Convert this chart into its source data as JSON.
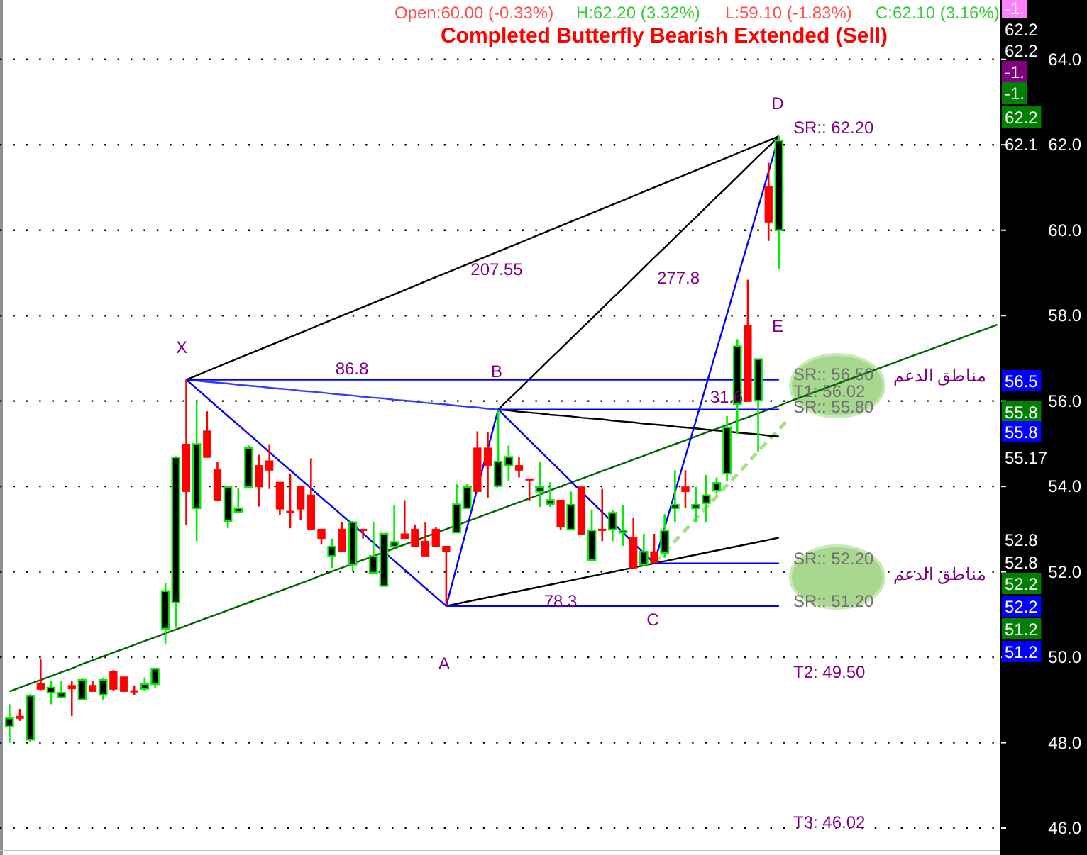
{
  "chart_data": {
    "type": "candlestick",
    "title": "Completed Butterfly Bearish Extended (Sell)",
    "categories": [
      null,
      null,
      null,
      null,
      null,
      null,
      null,
      null,
      null,
      null,
      null,
      null,
      null,
      null,
      null,
      null,
      null,
      null,
      null,
      null,
      null,
      null,
      null,
      null,
      null,
      null,
      null,
      null,
      null,
      null,
      null,
      null,
      null,
      null,
      null,
      null,
      null,
      null,
      null,
      null,
      null,
      null,
      null,
      null,
      null,
      null,
      null,
      null,
      null,
      null,
      null,
      null,
      null,
      null,
      null,
      null,
      null,
      null,
      null,
      null,
      null,
      null,
      null,
      null,
      null,
      null,
      null,
      null,
      null,
      null,
      null,
      null,
      null,
      null,
      null,
      null,
      null,
      null,
      null,
      null,
      null,
      null,
      null,
      null,
      null,
      null,
      null,
      null,
      null,
      null,
      null,
      null,
      null,
      null,
      null,
      null
    ],
    "ylim": [
      45.47,
      65.39
    ],
    "yticks": [
      {
        "value": 46,
        "label": "46.0"
      },
      {
        "value": 48,
        "label": "48.0"
      },
      {
        "value": 50,
        "label": "50.0"
      },
      {
        "value": 52,
        "label": "52.0"
      },
      {
        "value": 54,
        "label": "54.0"
      },
      {
        "value": 56,
        "label": "56.0"
      },
      {
        "value": 58,
        "label": "58.0"
      },
      {
        "value": 60,
        "label": "60.0"
      },
      {
        "value": 62,
        "label": "62.0"
      },
      {
        "value": 64,
        "label": "64.0"
      }
    ],
    "grid": "y",
    "tick_labels": "y",
    "series": [
      {
        "type": "line",
        "color": "#006400",
        "values": [
          49.2,
          49.29,
          49.38,
          49.47,
          49.56,
          49.65,
          49.74,
          49.84,
          49.93,
          50.02,
          50.11,
          50.2,
          50.29,
          50.38,
          50.47,
          50.56,
          50.65,
          50.74,
          50.83,
          50.92,
          51.01,
          51.1,
          51.19,
          51.28,
          51.37,
          51.46,
          51.55,
          51.64,
          51.73,
          51.82,
          51.92,
          52.01,
          52.1,
          52.19,
          52.28,
          52.37,
          52.46,
          52.55,
          52.64,
          52.73,
          52.82,
          52.91,
          53.0,
          53.09,
          53.18,
          53.27,
          53.36,
          53.45,
          53.54,
          53.63,
          53.72,
          53.81,
          53.91,
          54.0,
          54.09,
          54.18,
          54.27,
          54.36,
          54.45,
          54.54,
          54.63,
          54.72,
          54.81,
          54.9,
          54.99,
          55.08,
          55.17,
          55.26,
          55.35,
          55.44,
          55.53,
          55.62,
          55.71,
          55.8,
          55.89,
          55.99,
          56.08,
          56.17,
          56.26,
          56.35,
          56.44,
          56.53,
          56.62,
          56.71,
          56.8,
          56.89,
          56.98,
          57.07,
          57.16,
          57.25,
          57.34,
          57.43,
          57.52,
          57.61,
          57.7,
          57.79
        ]
      },
      {
        "type": "line",
        "color": "#a8e088",
        "line_style": "dashed",
        "values": [
          null,
          null,
          null,
          null,
          null,
          null,
          null,
          null,
          null,
          null,
          null,
          null,
          null,
          null,
          null,
          null,
          null,
          null,
          null,
          null,
          null,
          null,
          null,
          null,
          null,
          null,
          null,
          null,
          null,
          null,
          null,
          null,
          null,
          null,
          null,
          null,
          null,
          null,
          null,
          null,
          null,
          null,
          null,
          null,
          null,
          null,
          null,
          null,
          null,
          null,
          null,
          null,
          null,
          null,
          null,
          null,
          null,
          null,
          null,
          null,
          null,
          null,
          52.2,
          52.46,
          52.72,
          52.98,
          53.25,
          53.51,
          53.77,
          54.03,
          54.29,
          54.55,
          54.82,
          55.08,
          55.34,
          55.6,
          null,
          null,
          null,
          null,
          null,
          null,
          null,
          null,
          null,
          null,
          null,
          null,
          null,
          null,
          null,
          null,
          null,
          null,
          null,
          null
        ]
      },
      {
        "type": "line",
        "color": "#000000",
        "values": [
          null,
          null,
          null,
          null,
          null,
          null,
          null,
          null,
          null,
          null,
          null,
          null,
          null,
          null,
          null,
          null,
          null,
          56.5,
          56.6,
          56.7,
          56.8,
          56.9,
          57.0,
          57.1,
          57.2,
          57.3,
          57.4,
          57.5,
          57.6,
          57.7,
          57.8,
          57.9,
          58.0,
          58.1,
          58.2,
          58.3,
          58.4,
          58.5,
          58.6,
          58.7,
          58.8,
          58.9,
          59.0,
          59.1,
          59.2,
          59.3,
          59.4,
          59.5,
          59.6,
          59.7,
          59.8,
          59.9,
          60.0,
          60.1,
          60.2,
          60.3,
          60.4,
          60.5,
          60.6,
          60.7,
          60.8,
          60.9,
          61.0,
          61.1,
          61.2,
          61.3,
          61.4,
          61.5,
          61.6,
          61.7,
          61.8,
          61.9,
          62.0,
          62.1,
          62.2,
          null,
          null,
          null,
          null,
          null,
          null,
          null,
          null,
          null,
          null,
          null,
          null,
          null,
          null,
          null,
          null,
          null,
          null,
          null,
          null,
          null
        ]
      },
      {
        "type": "line",
        "color": "#000000",
        "values": [
          null,
          null,
          null,
          null,
          null,
          null,
          null,
          null,
          null,
          null,
          null,
          null,
          null,
          null,
          null,
          null,
          null,
          null,
          null,
          null,
          null,
          null,
          null,
          null,
          null,
          null,
          null,
          null,
          null,
          null,
          null,
          null,
          null,
          null,
          null,
          null,
          null,
          null,
          null,
          null,
          null,
          null,
          null,
          null,
          null,
          null,
          null,
          55.8,
          56.04,
          56.27,
          56.51,
          56.75,
          56.99,
          57.22,
          57.46,
          57.7,
          57.93,
          58.17,
          58.41,
          58.64,
          58.88,
          59.12,
          59.36,
          59.59,
          59.83,
          60.07,
          60.3,
          60.54,
          60.78,
          61.01,
          61.25,
          61.49,
          61.73,
          61.96,
          62.2,
          null,
          null,
          null,
          null,
          null,
          null,
          null,
          null,
          null,
          null,
          null,
          null,
          null,
          null,
          null,
          null,
          null,
          null,
          null,
          null,
          null
        ]
      },
      {
        "type": "line",
        "color": "#000000",
        "values": [
          null,
          null,
          null,
          null,
          null,
          null,
          null,
          null,
          null,
          null,
          null,
          null,
          null,
          null,
          null,
          null,
          null,
          null,
          null,
          null,
          null,
          null,
          null,
          null,
          null,
          null,
          null,
          null,
          null,
          null,
          null,
          null,
          null,
          null,
          null,
          null,
          null,
          null,
          null,
          null,
          null,
          null,
          null,
          null,
          null,
          null,
          null,
          55.8,
          55.78,
          55.75,
          55.73,
          55.71,
          55.68,
          55.66,
          55.64,
          55.61,
          55.59,
          55.57,
          55.54,
          55.52,
          55.5,
          55.47,
          55.45,
          55.43,
          55.4,
          55.38,
          55.36,
          55.33,
          55.31,
          55.29,
          55.26,
          55.24,
          55.22,
          55.19,
          55.17,
          null,
          null,
          null,
          null,
          null,
          null,
          null,
          null,
          null,
          null,
          null,
          null,
          null,
          null,
          null,
          null,
          null,
          null,
          null,
          null,
          null
        ]
      },
      {
        "type": "line",
        "color": "#000000",
        "values": [
          null,
          null,
          null,
          null,
          null,
          null,
          null,
          null,
          null,
          null,
          null,
          null,
          null,
          null,
          null,
          null,
          null,
          null,
          null,
          null,
          null,
          null,
          null,
          null,
          null,
          null,
          null,
          null,
          null,
          null,
          null,
          null,
          null,
          null,
          null,
          null,
          null,
          null,
          null,
          null,
          null,
          null,
          51.2,
          51.25,
          51.3,
          51.35,
          51.4,
          51.45,
          51.5,
          51.55,
          51.6,
          51.65,
          51.7,
          51.75,
          51.8,
          51.85,
          51.9,
          51.95,
          52.0,
          52.05,
          52.1,
          52.15,
          52.2,
          52.25,
          52.3,
          52.35,
          52.4,
          52.45,
          52.5,
          52.55,
          52.6,
          52.65,
          52.7,
          52.75,
          52.8,
          null,
          null,
          null,
          null,
          null,
          null,
          null,
          null,
          null,
          null,
          null,
          null,
          null,
          null,
          null,
          null,
          null,
          null,
          null,
          null,
          null
        ]
      },
      {
        "type": "line",
        "color": "#3a3aff",
        "values": [
          null,
          null,
          null,
          null,
          null,
          null,
          null,
          null,
          null,
          null,
          null,
          null,
          null,
          null,
          null,
          null,
          null,
          56.5,
          56.48,
          56.45,
          56.43,
          56.41,
          56.38,
          56.36,
          56.34,
          56.31,
          56.29,
          56.27,
          56.24,
          56.22,
          56.2,
          56.17,
          56.15,
          56.13,
          56.1,
          56.08,
          56.06,
          56.03,
          56.01,
          55.99,
          55.96,
          55.94,
          55.92,
          55.89,
          55.87,
          55.85,
          55.82,
          55.8,
          null,
          null,
          null,
          null,
          null,
          null,
          null,
          null,
          null,
          null,
          null,
          null,
          null,
          null,
          null,
          null,
          null,
          null,
          null,
          null,
          null,
          null,
          null,
          null,
          null,
          null,
          null,
          null,
          null,
          null,
          null,
          null,
          null,
          null,
          null,
          null,
          null,
          null,
          null,
          null,
          null,
          null,
          null,
          null,
          null,
          null,
          null,
          null
        ]
      },
      {
        "type": "line",
        "color": "#0000ff",
        "values": [
          null,
          null,
          null,
          null,
          null,
          null,
          null,
          null,
          null,
          null,
          null,
          null,
          null,
          null,
          null,
          null,
          null,
          56.5,
          56.5,
          56.5,
          56.5,
          56.5,
          56.5,
          56.5,
          56.5,
          56.5,
          56.5,
          56.5,
          56.5,
          56.5,
          56.5,
          56.5,
          56.5,
          56.5,
          56.5,
          56.5,
          56.5,
          56.5,
          56.5,
          56.5,
          56.5,
          56.5,
          56.5,
          56.5,
          56.5,
          56.5,
          56.5,
          56.5,
          56.5,
          56.5,
          56.5,
          56.5,
          56.5,
          56.5,
          56.5,
          56.5,
          56.5,
          56.5,
          56.5,
          56.5,
          56.5,
          56.5,
          56.5,
          56.5,
          56.5,
          56.5,
          56.5,
          56.5,
          56.5,
          56.5,
          56.5,
          56.5,
          56.5,
          56.5,
          56.5,
          null,
          null,
          null,
          null,
          null,
          null,
          null,
          null,
          null,
          null,
          null,
          null,
          null,
          null,
          null,
          null,
          null,
          null,
          null,
          null,
          null
        ]
      },
      {
        "type": "line",
        "color": "#0000ff",
        "values": [
          null,
          null,
          null,
          null,
          null,
          null,
          null,
          null,
          null,
          null,
          null,
          null,
          null,
          null,
          null,
          null,
          null,
          null,
          null,
          null,
          null,
          null,
          null,
          null,
          null,
          null,
          null,
          null,
          null,
          null,
          null,
          null,
          null,
          null,
          null,
          null,
          null,
          null,
          null,
          null,
          null,
          null,
          null,
          null,
          null,
          null,
          null,
          55.8,
          55.8,
          55.8,
          55.8,
          55.8,
          55.8,
          55.8,
          55.8,
          55.8,
          55.8,
          55.8,
          55.8,
          55.8,
          55.8,
          55.8,
          55.8,
          55.8,
          55.8,
          55.8,
          55.8,
          55.8,
          55.8,
          55.8,
          55.8,
          55.8,
          55.8,
          55.8,
          55.8,
          null,
          null,
          null,
          null,
          null,
          null,
          null,
          null,
          null,
          null,
          null,
          null,
          null,
          null,
          null,
          null,
          null,
          null,
          null,
          null,
          null
        ]
      },
      {
        "type": "line",
        "color": "#0000ff",
        "values": [
          null,
          null,
          null,
          null,
          null,
          null,
          null,
          null,
          null,
          null,
          null,
          null,
          null,
          null,
          null,
          null,
          null,
          null,
          null,
          null,
          null,
          null,
          null,
          null,
          null,
          null,
          null,
          null,
          null,
          null,
          null,
          null,
          null,
          null,
          null,
          null,
          null,
          null,
          null,
          null,
          null,
          null,
          null,
          null,
          null,
          null,
          null,
          null,
          null,
          null,
          null,
          null,
          null,
          null,
          null,
          null,
          null,
          null,
          null,
          null,
          null,
          null,
          52.2,
          52.2,
          52.2,
          52.2,
          52.2,
          52.2,
          52.2,
          52.2,
          52.2,
          52.2,
          52.2,
          52.2,
          52.2,
          null,
          null,
          null,
          null,
          null,
          null,
          null,
          null,
          null,
          null,
          null,
          null,
          null,
          null,
          null,
          null,
          null,
          null,
          null,
          null,
          null
        ]
      },
      {
        "type": "line",
        "color": "#0000ff",
        "values": [
          null,
          null,
          null,
          null,
          null,
          null,
          null,
          null,
          null,
          null,
          null,
          null,
          null,
          null,
          null,
          null,
          null,
          null,
          null,
          null,
          null,
          null,
          null,
          null,
          null,
          null,
          null,
          null,
          null,
          null,
          null,
          null,
          null,
          null,
          null,
          null,
          null,
          null,
          null,
          null,
          null,
          null,
          51.2,
          51.2,
          51.2,
          51.2,
          51.2,
          51.2,
          51.2,
          51.2,
          51.2,
          51.2,
          51.2,
          51.2,
          51.2,
          51.2,
          51.2,
          51.2,
          51.2,
          51.2,
          51.2,
          51.2,
          51.2,
          51.2,
          51.2,
          51.2,
          51.2,
          51.2,
          51.2,
          51.2,
          51.2,
          51.2,
          51.2,
          51.2,
          51.2,
          null,
          null,
          null,
          null,
          null,
          null,
          null,
          null,
          null,
          null,
          null,
          null,
          null,
          null,
          null,
          null,
          null,
          null,
          null,
          null,
          null
        ]
      },
      {
        "type": "line",
        "color": "#0000ff",
        "values": [
          null,
          null,
          null,
          null,
          null,
          null,
          null,
          null,
          null,
          null,
          null,
          null,
          null,
          null,
          null,
          null,
          null,
          56.5,
          56.29,
          56.08,
          55.86,
          55.65,
          55.44,
          55.23,
          55.02,
          54.8,
          54.59,
          54.38,
          54.17,
          53.96,
          53.74,
          53.53,
          53.32,
          53.11,
          52.9,
          52.68,
          52.47,
          52.26,
          52.05,
          51.84,
          51.62,
          51.41,
          51.2,
          52.12,
          53.04,
          53.96,
          54.88,
          55.8,
          55.56,
          55.32,
          55.08,
          54.84,
          54.6,
          54.36,
          54.12,
          53.88,
          53.64,
          53.4,
          53.16,
          52.92,
          52.68,
          52.44,
          52.2,
          53.03,
          53.87,
          54.7,
          55.53,
          56.37,
          57.2,
          58.03,
          58.87,
          59.7,
          60.53,
          61.37,
          62.2,
          null,
          null,
          null,
          null,
          null,
          null,
          null,
          null,
          null,
          null,
          null,
          null,
          null,
          null,
          null,
          null,
          null,
          null,
          null,
          null,
          null
        ]
      },
      {
        "ohlc": [
          [
            48.38,
            48.9,
            48.0,
            48.57
          ],
          [
            48.62,
            48.79,
            48.51,
            48.57
          ],
          [
            48.07,
            49.14,
            48.01,
            49.1
          ],
          [
            49.38,
            49.95,
            49.23,
            49.25
          ],
          [
            49.17,
            49.45,
            48.9,
            49.29
          ],
          [
            49.06,
            49.45,
            49.03,
            49.17
          ],
          [
            49.34,
            49.45,
            48.62,
            49.26
          ],
          [
            49.01,
            49.51,
            48.99,
            49.47
          ],
          [
            49.34,
            49.45,
            49.19,
            49.2
          ],
          [
            49.12,
            49.51,
            49.01,
            49.47
          ],
          [
            49.67,
            49.7,
            49.21,
            49.25
          ],
          [
            49.54,
            49.54,
            49.19,
            49.2
          ],
          [
            49.22,
            49.34,
            49.12,
            49.21
          ],
          [
            49.26,
            49.53,
            49.21,
            49.37
          ],
          [
            49.37,
            49.75,
            49.29,
            49.73
          ],
          [
            50.67,
            51.74,
            50.32,
            51.55
          ],
          [
            51.28,
            54.71,
            50.69,
            54.68
          ],
          [
            54.99,
            56.5,
            53.1,
            53.88
          ],
          [
            53.49,
            55.98,
            52.72,
            54.99
          ],
          [
            55.3,
            55.76,
            54.68,
            54.68
          ],
          [
            54.4,
            54.57,
            53.68,
            53.68
          ],
          [
            53.19,
            53.99,
            53.02,
            53.99
          ],
          [
            53.4,
            53.97,
            53.38,
            53.49
          ],
          [
            53.99,
            54.96,
            53.99,
            54.9
          ],
          [
            54.49,
            54.74,
            53.53,
            53.99
          ],
          [
            54.6,
            54.99,
            53.94,
            54.38
          ],
          [
            54.1,
            54.1,
            53.33,
            53.47
          ],
          [
            53.42,
            54.3,
            53.02,
            53.4
          ],
          [
            54.01,
            54.01,
            53.22,
            53.47
          ],
          [
            53.8,
            54.66,
            53.0,
            53.0
          ],
          [
            53.0,
            53.0,
            52.64,
            52.78
          ],
          [
            52.37,
            52.78,
            52.09,
            52.59
          ],
          [
            53.0,
            53.16,
            52.48,
            52.48
          ],
          [
            52.17,
            53.19,
            52.02,
            53.16
          ],
          [
            53.0,
            53.0,
            52.78,
            52.98
          ],
          [
            51.98,
            53.16,
            51.98,
            52.37
          ],
          [
            51.67,
            52.89,
            51.67,
            52.89
          ],
          [
            52.59,
            53.57,
            52.59,
            52.7
          ],
          [
            52.89,
            53.68,
            52.78,
            52.78
          ],
          [
            53.0,
            53.11,
            52.59,
            52.59
          ],
          [
            52.72,
            53.16,
            52.37,
            52.37
          ],
          [
            53.0,
            53.05,
            52.59,
            52.59
          ],
          [
            52.6,
            52.6,
            51.2,
            52.47
          ],
          [
            52.92,
            54.07,
            52.92,
            53.58
          ],
          [
            53.49,
            54.05,
            53.49,
            53.99
          ],
          [
            54.9,
            55.29,
            53.88,
            53.88
          ],
          [
            54.9,
            55.27,
            53.72,
            54.49
          ],
          [
            54.01,
            55.8,
            54.01,
            54.58
          ],
          [
            54.49,
            54.96,
            54.13,
            54.69
          ],
          [
            54.49,
            54.68,
            54.21,
            54.38
          ],
          [
            54.18,
            54.18,
            53.66,
            54.17
          ],
          [
            53.88,
            54.57,
            53.52,
            53.99
          ],
          [
            53.58,
            54.1,
            53.52,
            53.68
          ],
          [
            53.68,
            53.68,
            52.99,
            53.05
          ],
          [
            52.99,
            53.88,
            52.99,
            53.57
          ],
          [
            53.99,
            53.99,
            52.88,
            52.88
          ],
          [
            52.28,
            53.46,
            52.28,
            52.97
          ],
          [
            53.0,
            53.94,
            52.72,
            52.98
          ],
          [
            52.99,
            53.44,
            52.72,
            53.38
          ],
          [
            52.92,
            53.57,
            52.61,
            52.97
          ],
          [
            52.8,
            53.27,
            52.09,
            52.09
          ],
          [
            52.17,
            52.89,
            52.13,
            52.47
          ],
          [
            52.47,
            52.89,
            52.2,
            52.22
          ],
          [
            52.44,
            53.35,
            52.33,
            52.97
          ],
          [
            53.49,
            54.38,
            53.16,
            53.57
          ],
          [
            53.99,
            54.38,
            53.49,
            53.88
          ],
          [
            53.49,
            53.99,
            53.16,
            53.57
          ],
          [
            53.61,
            54.27,
            53.16,
            53.79
          ],
          [
            53.9,
            54.21,
            53.83,
            54.08
          ],
          [
            54.3,
            55.65,
            54.12,
            55.38
          ],
          [
            55.93,
            57.45,
            55.23,
            57.28
          ],
          [
            57.78,
            58.84,
            55.99,
            55.99
          ],
          [
            56.01,
            56.98,
            54.82,
            56.98
          ],
          [
            61.02,
            61.58,
            59.75,
            60.19
          ],
          [
            60.0,
            62.2,
            59.1,
            62.1
          ],
          null,
          null,
          null,
          null,
          null,
          null,
          null,
          null,
          null,
          null,
          null,
          null,
          null,
          null,
          null,
          null,
          null,
          null,
          null,
          null,
          null
        ]
      }
    ],
    "annotations": [
      "Open:60.00  (-0.33%)",
      "H:62.20  (3.32%)",
      "L:59.10  (-1.83%)",
      "C:62.10  (3.16%)",
      "X",
      "A",
      "B",
      "C",
      "D",
      "E",
      "207.55",
      "277.8",
      "86.8",
      "31.6",
      "78.3",
      "SR:: 62.20",
      "SR:: 56.50",
      "T1: 56.02",
      "SR:: 55.80",
      "SR:: 52.20",
      "SR:: 51.20",
      "T2: 49.50",
      "T3: 46.02",
      "مناطق الدعم",
      "مناطق الدعم",
      "-1.",
      "62.2",
      "62.2",
      "-1.",
      "-1.",
      "62.2",
      "62.1",
      "56.5",
      "55.8",
      "55.8",
      "55.17",
      "52.8",
      "52.8",
      "52.2",
      "52.2",
      "51.2",
      "51.2"
    ]
  }
}
